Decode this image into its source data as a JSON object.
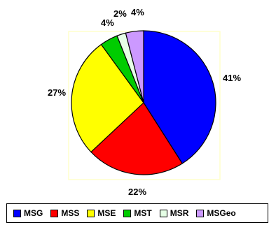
{
  "chart_data": {
    "type": "pie",
    "title": "",
    "start_angle_deg": 0,
    "direction": "clockwise",
    "legend_placement": "bottom",
    "categories": [
      "MSG",
      "MSS",
      "MSE",
      "MST",
      "MSR",
      "MSGeo"
    ],
    "values": [
      41,
      22,
      27,
      4,
      2,
      4
    ],
    "data_labels": [
      "41%",
      "22%",
      "27%",
      "4%",
      "2%",
      "4%"
    ],
    "colors": [
      "#0000ff",
      "#ff0000",
      "#ffff00",
      "#00cc00",
      "#e6ffe6",
      "#cc99ff"
    ],
    "series": [
      {
        "name": "MSG",
        "value": 41,
        "label": "41%",
        "color": "#0000ff"
      },
      {
        "name": "MSS",
        "value": 22,
        "label": "22%",
        "color": "#ff0000"
      },
      {
        "name": "MSE",
        "value": 27,
        "label": "27%",
        "color": "#ffff00"
      },
      {
        "name": "MST",
        "value": 4,
        "label": "4%",
        "color": "#00cc00"
      },
      {
        "name": "MSR",
        "value": 2,
        "label": "2%",
        "color": "#e6ffe6"
      },
      {
        "name": "MSGeo",
        "value": 4,
        "label": "4%",
        "color": "#cc99ff"
      }
    ]
  }
}
